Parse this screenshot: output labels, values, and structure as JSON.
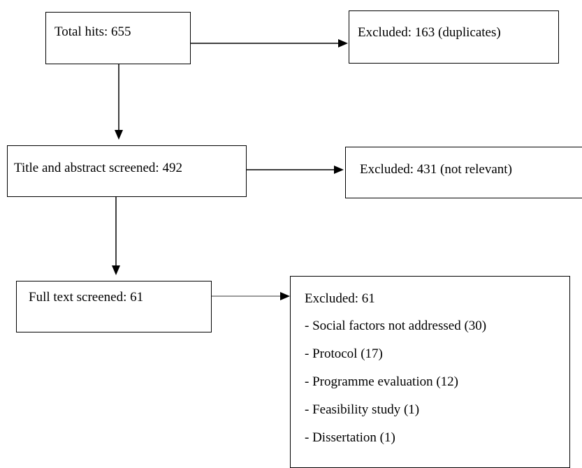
{
  "flow": {
    "total_hits": "Total hits: 655",
    "excluded_duplicates": "Excluded: 163 (duplicates)",
    "title_abstract": "Title and abstract screened: 492",
    "excluded_not_relevant": "Excluded: 431 (not relevant)",
    "full_text": "Full text screened: 61",
    "excluded_full_text": {
      "title": "Excluded: 61",
      "reasons": [
        "- Social factors not addressed (30)",
        "- Protocol (17)",
        "- Programme evaluation (12)",
        "- Feasibility study (1)",
        "- Dissertation (1)"
      ]
    }
  }
}
